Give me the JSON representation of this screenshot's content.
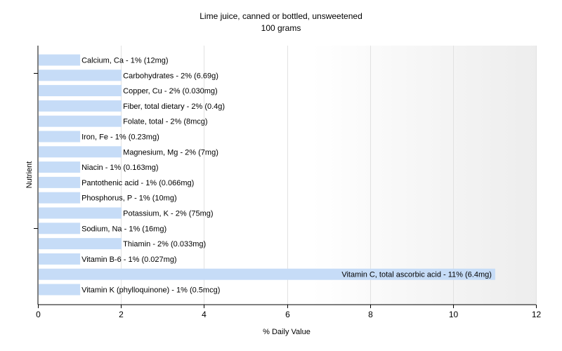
{
  "title": "Lime juice, canned or bottled, unsweetened",
  "subtitle": "100 grams",
  "chart_data": {
    "type": "bar",
    "orientation": "horizontal",
    "title": "Lime juice, canned or bottled, unsweetened",
    "subtitle": "100 grams",
    "xlabel": "% Daily Value",
    "ylabel": "Nutrient",
    "xlim": [
      0,
      12
    ],
    "xticks": [
      0,
      2,
      4,
      6,
      8,
      10,
      12
    ],
    "grid": "vertical",
    "bar_color": "#c6dcf7",
    "categories": [
      "Calcium, Ca",
      "Carbohydrates",
      "Copper, Cu",
      "Fiber, total dietary",
      "Folate, total",
      "Iron, Fe",
      "Magnesium, Mg",
      "Niacin",
      "Pantothenic acid",
      "Phosphorus, P",
      "Potassium, K",
      "Sodium, Na",
      "Thiamin",
      "Vitamin B-6",
      "Vitamin C, total ascorbic acid",
      "Vitamin K (phylloquinone)"
    ],
    "values": [
      1,
      2,
      2,
      2,
      2,
      1,
      2,
      1,
      1,
      1,
      2,
      1,
      2,
      1,
      11,
      1
    ],
    "labels": [
      "Calcium, Ca - 1% (12mg)",
      "Carbohydrates - 2% (6.69g)",
      "Copper, Cu - 2% (0.030mg)",
      "Fiber, total dietary - 2% (0.4g)",
      "Folate, total - 2% (8mcg)",
      "Iron, Fe - 1% (0.23mg)",
      "Magnesium, Mg - 2% (7mg)",
      "Niacin - 1% (0.163mg)",
      "Pantothenic acid - 1% (0.066mg)",
      "Phosphorus, P - 1% (10mg)",
      "Potassium, K - 2% (75mg)",
      "Sodium, Na - 1% (16mg)",
      "Thiamin - 2% (0.033mg)",
      "Vitamin B-6 - 1% (0.027mg)",
      "Vitamin C, total ascorbic acid - 11% (6.4mg)",
      "Vitamin K (phylloquinone) - 1% (0.5mcg)"
    ]
  }
}
